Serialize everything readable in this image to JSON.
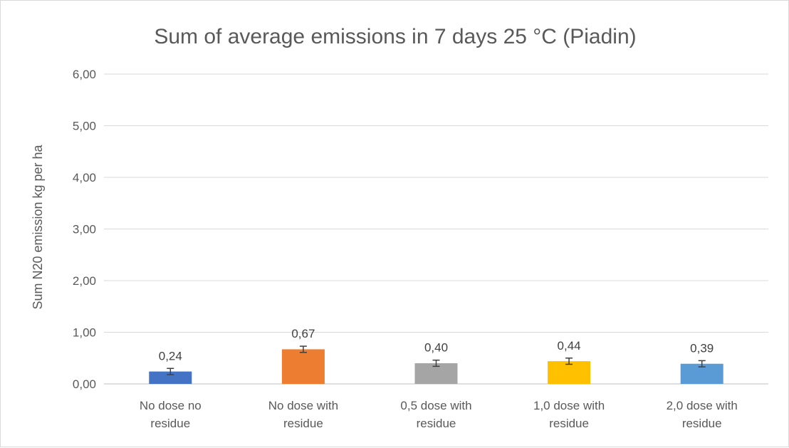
{
  "chart_data": {
    "type": "bar",
    "title": "Sum of average emissions in 7 days 25 °C (Piadin)",
    "ylabel": "Sum N20 emission kg per ha",
    "xlabel": "",
    "ylim": [
      0,
      6
    ],
    "yticks": [
      "0,00",
      "1,00",
      "2,00",
      "3,00",
      "4,00",
      "5,00",
      "6,00"
    ],
    "ytick_values": [
      0,
      1,
      2,
      3,
      4,
      5,
      6
    ],
    "grid": true,
    "categories": [
      [
        "No dose no",
        "residue"
      ],
      [
        "No dose with",
        "residue"
      ],
      [
        "0,5 dose with",
        "residue"
      ],
      [
        "1,0 dose with",
        "residue"
      ],
      [
        "2,0 dose with",
        "residue"
      ]
    ],
    "values": [
      0.24,
      0.67,
      0.4,
      0.44,
      0.39
    ],
    "value_labels": [
      "0,24",
      "0,67",
      "0,40",
      "0,44",
      "0,39"
    ],
    "error": [
      0.06,
      0.06,
      0.06,
      0.06,
      0.06
    ],
    "colors": [
      "#4472c4",
      "#ed7d31",
      "#a5a5a5",
      "#ffc000",
      "#5b9bd5"
    ]
  }
}
